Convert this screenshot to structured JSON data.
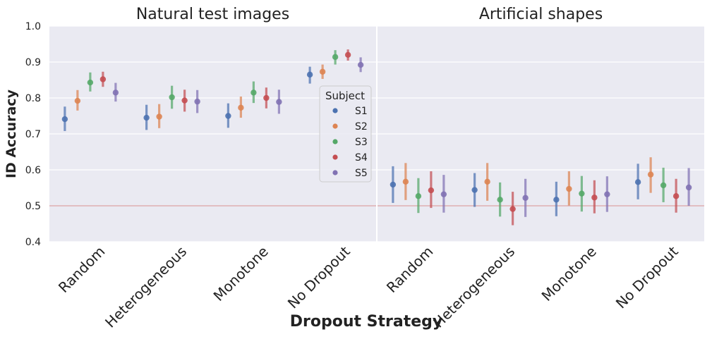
{
  "chart_data": [
    {
      "type": "pointplot",
      "title": "Natural test images",
      "ylabel": "ID Accuracy",
      "ylim": [
        0.4,
        1.0
      ],
      "yticks": [
        0.4,
        0.5,
        0.6,
        0.7,
        0.8,
        0.9,
        1.0
      ],
      "grid": true,
      "reference_line": 0.5,
      "categories": [
        "Random",
        "Heterogeneous",
        "Monotone",
        "No Dropout"
      ],
      "series": [
        {
          "name": "S1",
          "values": [
            0.741,
            0.745,
            0.75,
            0.865
          ],
          "ci_low": [
            0.708,
            0.711,
            0.717,
            0.84
          ],
          "ci_high": [
            0.776,
            0.781,
            0.785,
            0.887
          ]
        },
        {
          "name": "S2",
          "values": [
            0.792,
            0.748,
            0.773,
            0.873
          ],
          "ci_low": [
            0.765,
            0.716,
            0.745,
            0.853
          ],
          "ci_high": [
            0.822,
            0.783,
            0.804,
            0.893
          ]
        },
        {
          "name": "S3",
          "values": [
            0.843,
            0.802,
            0.815,
            0.914
          ],
          "ci_low": [
            0.818,
            0.77,
            0.786,
            0.893
          ],
          "ci_high": [
            0.871,
            0.834,
            0.846,
            0.933
          ]
        },
        {
          "name": "S4",
          "values": [
            0.852,
            0.793,
            0.8,
            0.92
          ],
          "ci_low": [
            0.831,
            0.762,
            0.771,
            0.904
          ],
          "ci_high": [
            0.873,
            0.823,
            0.829,
            0.935
          ]
        },
        {
          "name": "S5",
          "values": [
            0.815,
            0.79,
            0.789,
            0.892
          ],
          "ci_low": [
            0.79,
            0.758,
            0.756,
            0.872
          ],
          "ci_high": [
            0.842,
            0.822,
            0.823,
            0.913
          ]
        }
      ]
    },
    {
      "type": "pointplot",
      "title": "Artificial shapes",
      "ylim": [
        0.4,
        1.0
      ],
      "grid": true,
      "reference_line": 0.5,
      "categories": [
        "Random",
        "Heterogeneous",
        "Monotone",
        "No Dropout"
      ],
      "series": [
        {
          "name": "S1",
          "values": [
            0.559,
            0.544,
            0.517,
            0.566
          ],
          "ci_low": [
            0.508,
            0.497,
            0.471,
            0.518
          ],
          "ci_high": [
            0.61,
            0.591,
            0.567,
            0.617
          ]
        },
        {
          "name": "S2",
          "values": [
            0.567,
            0.567,
            0.547,
            0.587
          ],
          "ci_low": [
            0.516,
            0.514,
            0.501,
            0.536
          ],
          "ci_high": [
            0.619,
            0.619,
            0.596,
            0.635
          ]
        },
        {
          "name": "S3",
          "values": [
            0.527,
            0.517,
            0.534,
            0.557
          ],
          "ci_low": [
            0.48,
            0.47,
            0.484,
            0.51
          ],
          "ci_high": [
            0.577,
            0.565,
            0.583,
            0.606
          ]
        },
        {
          "name": "S4",
          "values": [
            0.543,
            0.491,
            0.523,
            0.527
          ],
          "ci_low": [
            0.494,
            0.446,
            0.479,
            0.481
          ],
          "ci_high": [
            0.596,
            0.539,
            0.571,
            0.575
          ]
        },
        {
          "name": "S5",
          "values": [
            0.532,
            0.522,
            0.532,
            0.551
          ],
          "ci_low": [
            0.481,
            0.469,
            0.483,
            0.5
          ],
          "ci_high": [
            0.586,
            0.575,
            0.582,
            0.605
          ]
        }
      ]
    }
  ],
  "shared": {
    "xlabel": "Dropout Strategy",
    "legend": {
      "title": "Subject",
      "position": "right of left panel",
      "labels": [
        "S1",
        "S2",
        "S3",
        "S4",
        "S5"
      ]
    },
    "colors": {
      "S1": "#4c72b0",
      "S2": "#dd8452",
      "S3": "#55a868",
      "S4": "#c44e52",
      "S5": "#8172b3",
      "background": "#eaeaf2",
      "grid": "#ffffff",
      "reference_line": "#d9a0a2",
      "text": "#222222"
    }
  }
}
